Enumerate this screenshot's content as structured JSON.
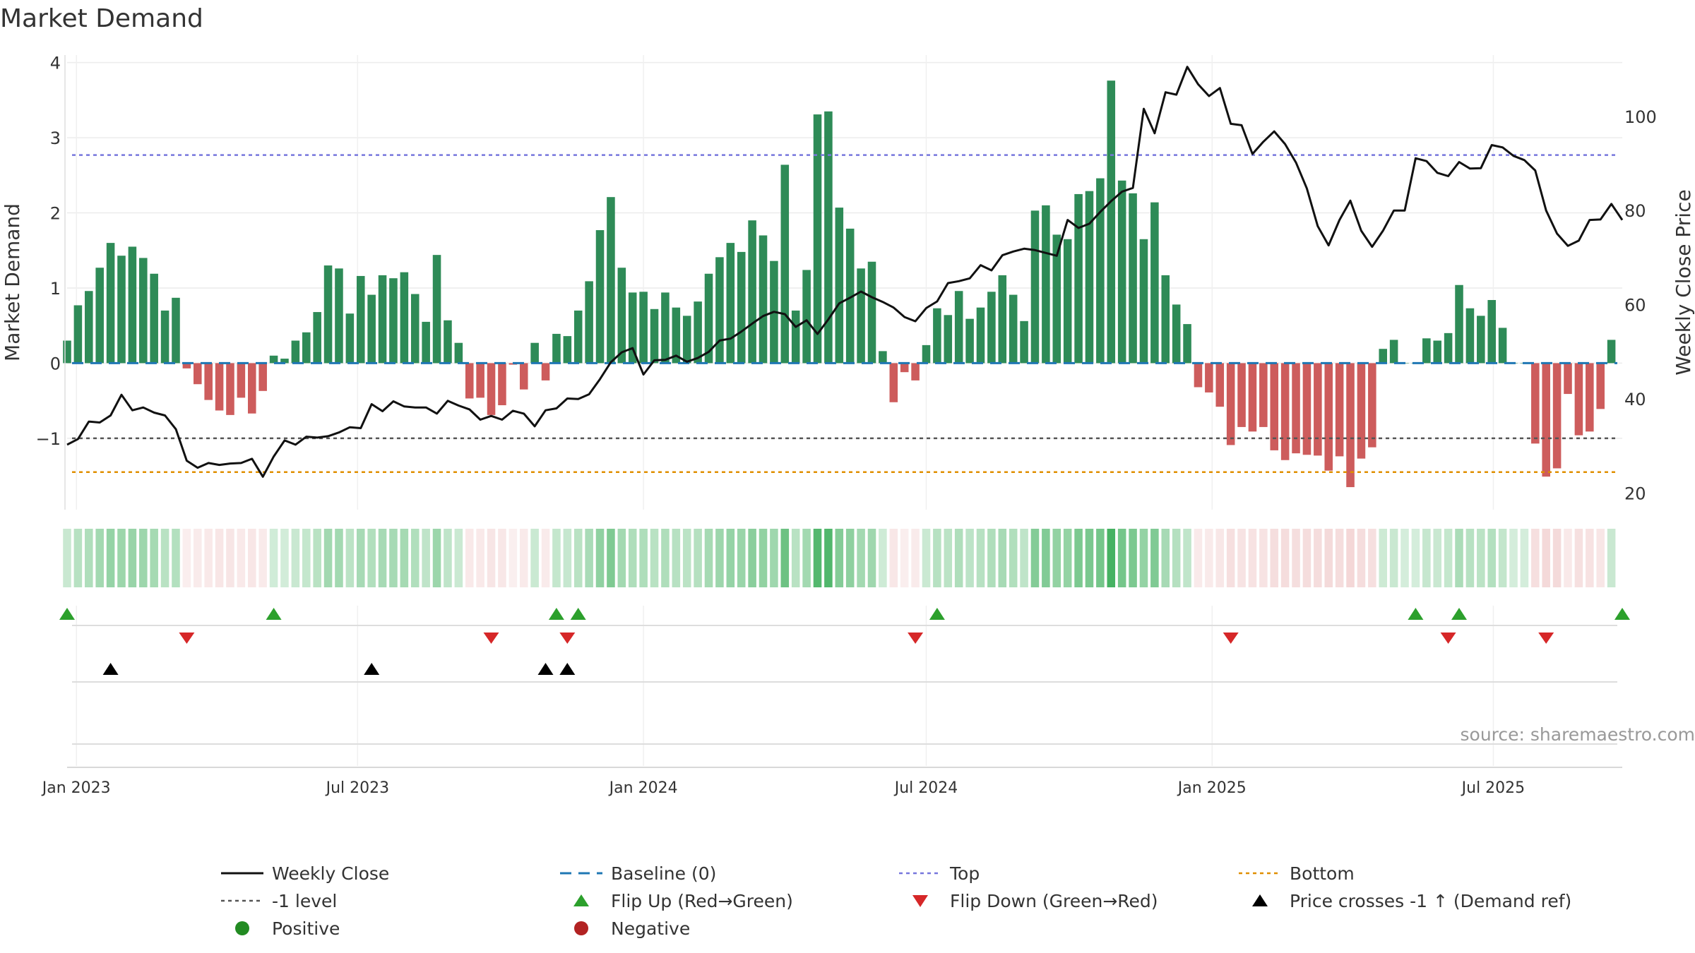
{
  "title": "Market Demand",
  "source": "source: sharemaestro.com",
  "colors": {
    "positive_bar": "#2e8b57",
    "negative_bar": "#cd5c5c",
    "price_line": "#111111",
    "baseline": "#1f77b4",
    "top": "#7777dd",
    "bottom": "#e08f00",
    "minus1": "#555555",
    "flip_up": "#2ca02c",
    "flip_down": "#d62728",
    "cross": "#000000",
    "positive_dot": "#228b22",
    "negative_dot": "#b22222"
  },
  "chart_data": {
    "type": "bar",
    "title": "Market Demand",
    "ylabel_left": "Market Demand",
    "ylabel_right": "Weekly Close Price",
    "ylim_left": [
      -1.95,
      4.1
    ],
    "ylim_right": [
      16.5,
      113
    ],
    "yticks_left": [
      {
        "v": 4,
        "label": "4"
      },
      {
        "v": 3,
        "label": "3"
      },
      {
        "v": 2,
        "label": "2"
      },
      {
        "v": 1,
        "label": "1"
      },
      {
        "v": 0,
        "label": "0"
      },
      {
        "v": -1,
        "label": "−1"
      }
    ],
    "yticks_right": [
      {
        "v": 100,
        "label": "100"
      },
      {
        "v": 80,
        "label": "80"
      },
      {
        "v": 60,
        "label": "60"
      },
      {
        "v": 40,
        "label": "40"
      },
      {
        "v": 20,
        "label": "20"
      }
    ],
    "x_start": "2022-12-26",
    "x_end": "2025-09-22",
    "x_tick_labels": [
      {
        "date": "2023-01-01",
        "label": "Jan 2023"
      },
      {
        "date": "2023-07-01",
        "label": "Jul 2023"
      },
      {
        "date": "2024-01-01",
        "label": "Jan 2024"
      },
      {
        "date": "2024-07-01",
        "label": "Jul 2024"
      },
      {
        "date": "2025-01-01",
        "label": "Jan 2025"
      },
      {
        "date": "2025-07-01",
        "label": "Jul 2025"
      }
    ],
    "bar_start_date": "2022-12-26",
    "bar_interval_days": 7,
    "demand": [
      0.3,
      0.77,
      0.96,
      1.27,
      1.6,
      1.43,
      1.55,
      1.4,
      1.19,
      0.7,
      0.87,
      -0.07,
      -0.28,
      -0.49,
      -0.63,
      -0.69,
      -0.46,
      -0.67,
      -0.37,
      0.1,
      0.06,
      0.3,
      0.41,
      0.68,
      1.3,
      1.26,
      0.66,
      1.16,
      0.91,
      1.17,
      1.13,
      1.21,
      0.92,
      0.55,
      1.44,
      0.57,
      0.27,
      -0.47,
      -0.46,
      -0.69,
      -0.56,
      -0.02,
      -0.35,
      0.27,
      -0.23,
      0.39,
      0.36,
      0.7,
      1.09,
      1.77,
      2.21,
      1.27,
      0.94,
      0.95,
      0.72,
      0.94,
      0.74,
      0.63,
      0.82,
      1.19,
      1.41,
      1.6,
      1.48,
      1.9,
      1.7,
      1.36,
      2.64,
      0.7,
      1.24,
      3.31,
      3.35,
      2.07,
      1.79,
      1.26,
      1.35,
      0.16,
      -0.52,
      -0.12,
      -0.23,
      0.24,
      0.73,
      0.64,
      0.96,
      0.59,
      0.74,
      0.95,
      1.17,
      0.91,
      0.56,
      2.03,
      2.1,
      1.71,
      1.65,
      2.25,
      2.29,
      2.46,
      3.76,
      2.43,
      2.26,
      1.65,
      2.14,
      1.17,
      0.78,
      0.52,
      -0.32,
      -0.39,
      -0.58,
      -1.09,
      -0.85,
      -0.91,
      -0.85,
      -1.16,
      -1.29,
      -1.2,
      -1.22,
      -1.23,
      -1.43,
      -1.24,
      -1.65,
      -1.27,
      -1.12,
      0.19,
      0.31,
      0.0,
      0.0,
      0.33,
      0.3,
      0.4,
      1.04,
      0.73,
      0.63,
      0.84,
      0.47,
      0.0,
      0.0,
      -1.07,
      -1.51,
      -1.4,
      -0.41,
      -0.96,
      -0.91,
      -0.61,
      0.31
    ],
    "price_points": [
      [
        "2022-12-26",
        30.3
      ],
      [
        "2023-01-02",
        31.5
      ],
      [
        "2023-01-09",
        35.2
      ],
      [
        "2023-01-16",
        35.0
      ],
      [
        "2023-01-23",
        36.5
      ],
      [
        "2023-01-30",
        40.9
      ],
      [
        "2023-02-06",
        37.6
      ],
      [
        "2023-02-13",
        38.2
      ],
      [
        "2023-02-20",
        37.1
      ],
      [
        "2023-02-27",
        36.5
      ],
      [
        "2023-03-06",
        33.6
      ],
      [
        "2023-03-13",
        26.9
      ],
      [
        "2023-03-20",
        25.4
      ],
      [
        "2023-03-27",
        26.4
      ],
      [
        "2023-04-03",
        26.0
      ],
      [
        "2023-04-10",
        26.3
      ],
      [
        "2023-04-17",
        26.4
      ],
      [
        "2023-04-24",
        27.3
      ],
      [
        "2023-05-01",
        23.5
      ],
      [
        "2023-05-08",
        27.8
      ],
      [
        "2023-05-15",
        31.2
      ],
      [
        "2023-05-22",
        30.3
      ],
      [
        "2023-05-29",
        32.0
      ],
      [
        "2023-06-05",
        31.8
      ],
      [
        "2023-06-12",
        32.1
      ],
      [
        "2023-06-19",
        32.9
      ],
      [
        "2023-06-26",
        34.0
      ],
      [
        "2023-07-03",
        33.8
      ],
      [
        "2023-07-10",
        38.9
      ],
      [
        "2023-07-17",
        37.4
      ],
      [
        "2023-07-24",
        39.5
      ],
      [
        "2023-07-31",
        38.4
      ],
      [
        "2023-08-07",
        38.2
      ],
      [
        "2023-08-14",
        38.2
      ],
      [
        "2023-08-21",
        36.9
      ],
      [
        "2023-08-28",
        39.6
      ],
      [
        "2023-09-04",
        38.6
      ],
      [
        "2023-09-11",
        37.8
      ],
      [
        "2023-09-18",
        35.6
      ],
      [
        "2023-09-25",
        36.4
      ],
      [
        "2023-10-02",
        35.6
      ],
      [
        "2023-10-09",
        37.5
      ],
      [
        "2023-10-16",
        36.9
      ],
      [
        "2023-10-23",
        34.2
      ],
      [
        "2023-10-30",
        37.6
      ],
      [
        "2023-11-06",
        38.0
      ],
      [
        "2023-11-13",
        40.1
      ],
      [
        "2023-11-20",
        40.0
      ],
      [
        "2023-11-27",
        41.0
      ],
      [
        "2023-12-04",
        44.2
      ],
      [
        "2023-12-11",
        47.8
      ],
      [
        "2023-12-18",
        49.9
      ],
      [
        "2023-12-25",
        50.8
      ],
      [
        "2024-01-01",
        45.2
      ],
      [
        "2024-01-08",
        48.2
      ],
      [
        "2024-01-15",
        48.3
      ],
      [
        "2024-01-22",
        49.2
      ],
      [
        "2024-01-29",
        47.9
      ],
      [
        "2024-02-05",
        48.7
      ],
      [
        "2024-02-12",
        50.0
      ],
      [
        "2024-02-19",
        52.4
      ],
      [
        "2024-02-26",
        52.8
      ],
      [
        "2024-03-04",
        54.3
      ],
      [
        "2024-03-11",
        56.0
      ],
      [
        "2024-03-18",
        57.6
      ],
      [
        "2024-03-25",
        58.5
      ],
      [
        "2024-04-01",
        58.0
      ],
      [
        "2024-04-08",
        55.3
      ],
      [
        "2024-04-15",
        56.7
      ],
      [
        "2024-04-22",
        53.8
      ],
      [
        "2024-04-29",
        56.9
      ],
      [
        "2024-05-06",
        60.3
      ],
      [
        "2024-05-13",
        61.5
      ],
      [
        "2024-05-20",
        62.8
      ],
      [
        "2024-05-27",
        61.6
      ],
      [
        "2024-06-03",
        60.6
      ],
      [
        "2024-06-10",
        59.4
      ],
      [
        "2024-06-17",
        57.4
      ],
      [
        "2024-06-24",
        56.5
      ],
      [
        "2024-07-01",
        59.3
      ],
      [
        "2024-07-08",
        60.7
      ],
      [
        "2024-07-15",
        64.6
      ],
      [
        "2024-07-22",
        65.0
      ],
      [
        "2024-07-29",
        65.6
      ],
      [
        "2024-08-05",
        68.4
      ],
      [
        "2024-08-12",
        67.3
      ],
      [
        "2024-08-19",
        70.5
      ],
      [
        "2024-08-26",
        71.3
      ],
      [
        "2024-09-02",
        71.9
      ],
      [
        "2024-09-09",
        71.6
      ],
      [
        "2024-09-16",
        71.0
      ],
      [
        "2024-09-23",
        70.4
      ],
      [
        "2024-09-30",
        78.0
      ],
      [
        "2024-10-07",
        76.3
      ],
      [
        "2024-10-14",
        77.2
      ],
      [
        "2024-10-21",
        79.7
      ],
      [
        "2024-10-28",
        82.0
      ],
      [
        "2024-11-04",
        84.0
      ],
      [
        "2024-11-11",
        84.8
      ],
      [
        "2024-11-18",
        101.6
      ],
      [
        "2024-11-25",
        96.4
      ],
      [
        "2024-12-02",
        105.1
      ],
      [
        "2024-12-09",
        104.6
      ],
      [
        "2024-12-16",
        110.5
      ],
      [
        "2024-12-23",
        106.8
      ],
      [
        "2024-12-30",
        104.3
      ],
      [
        "2025-01-06",
        106.0
      ],
      [
        "2025-01-13",
        98.4
      ],
      [
        "2025-01-20",
        98.1
      ],
      [
        "2025-01-27",
        92.0
      ],
      [
        "2025-02-03",
        94.6
      ],
      [
        "2025-02-10",
        96.8
      ],
      [
        "2025-02-17",
        94.1
      ],
      [
        "2025-02-24",
        90.2
      ],
      [
        "2025-03-03",
        84.7
      ],
      [
        "2025-03-10",
        76.7
      ],
      [
        "2025-03-17",
        72.6
      ],
      [
        "2025-03-24",
        78.0
      ],
      [
        "2025-03-31",
        82.1
      ],
      [
        "2025-04-07",
        75.7
      ],
      [
        "2025-04-14",
        72.3
      ],
      [
        "2025-04-21",
        75.7
      ],
      [
        "2025-04-28",
        80.0
      ],
      [
        "2025-05-05",
        80.0
      ],
      [
        "2025-05-12",
        91.1
      ],
      [
        "2025-05-19",
        90.5
      ],
      [
        "2025-05-26",
        88.0
      ],
      [
        "2025-06-02",
        87.3
      ],
      [
        "2025-06-09",
        90.3
      ],
      [
        "2025-06-16",
        88.9
      ],
      [
        "2025-06-23",
        89.0
      ],
      [
        "2025-06-30",
        93.9
      ],
      [
        "2025-07-07",
        93.4
      ],
      [
        "2025-07-14",
        91.6
      ],
      [
        "2025-07-21",
        90.7
      ],
      [
        "2025-07-28",
        88.5
      ],
      [
        "2025-08-04",
        80.0
      ],
      [
        "2025-08-11",
        75.1
      ],
      [
        "2025-08-18",
        72.5
      ],
      [
        "2025-08-25",
        73.6
      ],
      [
        "2025-09-01",
        78.0
      ],
      [
        "2025-09-08",
        78.1
      ],
      [
        "2025-09-15",
        81.4
      ],
      [
        "2025-09-22",
        78.0
      ]
    ],
    "top_level": 2.77,
    "bottom_level": -1.45,
    "minus1_level": -1,
    "flip_up_dates": [
      "2022-12-26",
      "2023-05-08",
      "2023-11-06",
      "2023-11-20",
      "2024-07-08",
      "2025-05-12",
      "2025-06-09",
      "2025-09-22"
    ],
    "flip_down_dates": [
      "2023-03-13",
      "2023-09-25",
      "2023-11-13",
      "2024-06-24",
      "2025-01-13",
      "2025-06-02",
      "2025-08-04"
    ],
    "price_cross_dates": [
      "2023-01-23",
      "2023-07-10",
      "2023-10-30",
      "2023-11-13"
    ],
    "legend": [
      {
        "label": "Weekly Close",
        "kind": "line"
      },
      {
        "label": "Baseline (0)",
        "kind": "dash"
      },
      {
        "label": "Top",
        "kind": "dotted-top"
      },
      {
        "label": "Bottom",
        "kind": "dotted-bottom"
      },
      {
        "label": "-1 level",
        "kind": "dotted-minus1"
      },
      {
        "label": "Flip Up (Red→Green)",
        "kind": "tri-up-green"
      },
      {
        "label": "Flip Down (Green→Red)",
        "kind": "tri-down-red"
      },
      {
        "label": "Price crosses -1 ↑ (Demand ref)",
        "kind": "tri-up-black"
      },
      {
        "label": "Positive",
        "kind": "dot-green"
      },
      {
        "label": "Negative",
        "kind": "dot-red"
      }
    ]
  }
}
